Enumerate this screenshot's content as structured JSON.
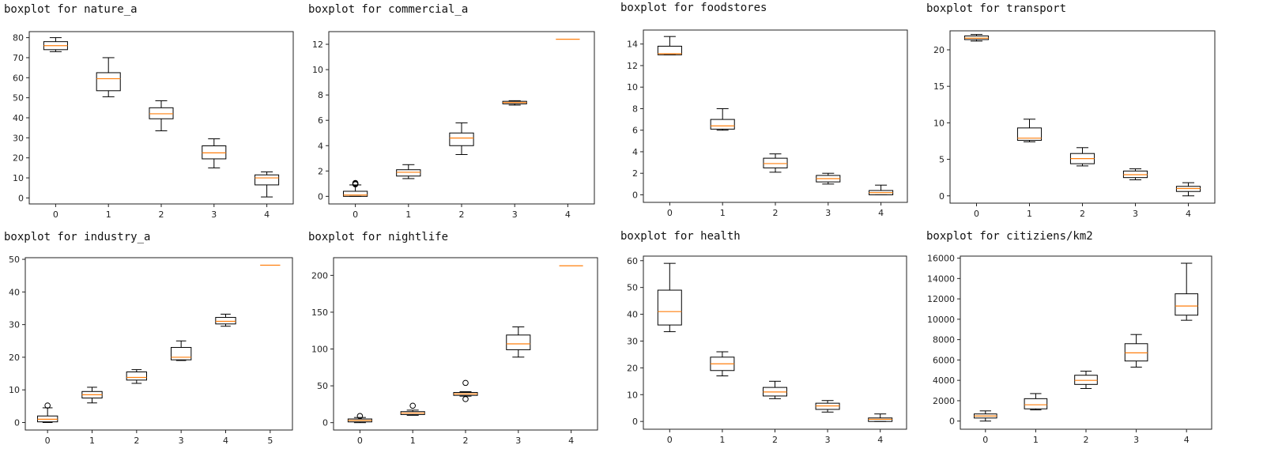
{
  "chart_data": [
    {
      "type": "boxplot",
      "title": "boxplot for nature_a",
      "x": [
        0,
        1,
        2,
        3,
        4
      ],
      "ylim": [
        -3,
        83
      ],
      "yticks": [
        0,
        10,
        20,
        30,
        40,
        50,
        60,
        70,
        80
      ],
      "boxes": [
        {
          "whislo": 73,
          "q1": 74,
          "med": 76,
          "q3": 78,
          "whishi": 80,
          "fliers": []
        },
        {
          "whislo": 50.5,
          "q1": 53.5,
          "med": 59.5,
          "q3": 62.5,
          "whishi": 70,
          "fliers": []
        },
        {
          "whislo": 33.5,
          "q1": 39.5,
          "med": 42,
          "q3": 45,
          "whishi": 48.5,
          "fliers": []
        },
        {
          "whislo": 15,
          "q1": 19.5,
          "med": 22.5,
          "q3": 26,
          "whishi": 29.5,
          "fliers": []
        },
        {
          "whislo": 0.5,
          "q1": 6.5,
          "med": 10,
          "q3": 11.5,
          "whishi": 13,
          "fliers": []
        }
      ]
    },
    {
      "type": "boxplot",
      "title": "boxplot for commercial_a",
      "x": [
        0,
        1,
        2,
        3,
        4
      ],
      "ylim": [
        -0.6,
        13.0
      ],
      "yticks": [
        0,
        2,
        4,
        6,
        8,
        10,
        12
      ],
      "boxes": [
        {
          "whislo": 0,
          "q1": 0,
          "med": 0.1,
          "q3": 0.4,
          "whishi": 0.9,
          "fliers": [
            0.95,
            1.0,
            1.05
          ]
        },
        {
          "whislo": 1.4,
          "q1": 1.6,
          "med": 1.9,
          "q3": 2.1,
          "whishi": 2.5,
          "fliers": []
        },
        {
          "whislo": 3.3,
          "q1": 4.0,
          "med": 4.6,
          "q3": 5.0,
          "whishi": 5.8,
          "fliers": []
        },
        {
          "whislo": 7.2,
          "q1": 7.3,
          "med": 7.4,
          "q3": 7.5,
          "whishi": 7.55,
          "fliers": []
        },
        {
          "whislo": 12.4,
          "q1": 12.4,
          "med": 12.4,
          "q3": 12.4,
          "whishi": 12.4,
          "fliers": []
        }
      ]
    },
    {
      "type": "boxplot",
      "title": "boxplot for foodstores",
      "x": [
        0,
        1,
        2,
        3,
        4
      ],
      "ylim": [
        -0.7,
        15.3
      ],
      "yticks": [
        0,
        2,
        4,
        6,
        8,
        10,
        12,
        14
      ],
      "boxes": [
        {
          "whislo": 13.0,
          "q1": 13.0,
          "med": 13.1,
          "q3": 13.8,
          "whishi": 14.7,
          "fliers": []
        },
        {
          "whislo": 6.0,
          "q1": 6.1,
          "med": 6.4,
          "q3": 7.0,
          "whishi": 8.0,
          "fliers": []
        },
        {
          "whislo": 2.1,
          "q1": 2.5,
          "med": 2.9,
          "q3": 3.4,
          "whishi": 3.8,
          "fliers": []
        },
        {
          "whislo": 1.0,
          "q1": 1.2,
          "med": 1.5,
          "q3": 1.8,
          "whishi": 2.0,
          "fliers": []
        },
        {
          "whislo": 0,
          "q1": 0,
          "med": 0.2,
          "q3": 0.4,
          "whishi": 0.9,
          "fliers": []
        }
      ]
    },
    {
      "type": "boxplot",
      "title": "boxplot for transport",
      "x": [
        0,
        1,
        2,
        3,
        4
      ],
      "ylim": [
        -1.0,
        22.6
      ],
      "yticks": [
        0,
        5,
        10,
        15,
        20
      ],
      "boxes": [
        {
          "whislo": 21.2,
          "q1": 21.4,
          "med": 21.6,
          "q3": 21.9,
          "whishi": 22.1,
          "fliers": []
        },
        {
          "whislo": 7.4,
          "q1": 7.6,
          "med": 7.9,
          "q3": 9.3,
          "whishi": 10.5,
          "fliers": []
        },
        {
          "whislo": 4.1,
          "q1": 4.4,
          "med": 5.1,
          "q3": 5.8,
          "whishi": 6.6,
          "fliers": []
        },
        {
          "whislo": 2.2,
          "q1": 2.5,
          "med": 2.9,
          "q3": 3.4,
          "whishi": 3.7,
          "fliers": []
        },
        {
          "whislo": 0,
          "q1": 0.6,
          "med": 1.0,
          "q3": 1.3,
          "whishi": 1.8,
          "fliers": []
        }
      ]
    },
    {
      "type": "boxplot",
      "title": "boxplot for industry_a",
      "x": [
        0,
        1,
        2,
        3,
        4,
        5
      ],
      "ylim": [
        -2.3,
        50.5
      ],
      "yticks": [
        0,
        10,
        20,
        30,
        40,
        50
      ],
      "boxes": [
        {
          "whislo": 0,
          "q1": 0.2,
          "med": 1.0,
          "q3": 2.0,
          "whishi": 4.5,
          "fliers": [
            5.2
          ]
        },
        {
          "whislo": 6,
          "q1": 7.5,
          "med": 8.5,
          "q3": 9.5,
          "whishi": 10.8,
          "fliers": []
        },
        {
          "whislo": 12,
          "q1": 13,
          "med": 13.8,
          "q3": 15.5,
          "whishi": 16.2,
          "fliers": []
        },
        {
          "whislo": 19,
          "q1": 19.2,
          "med": 20,
          "q3": 23,
          "whishi": 25,
          "fliers": []
        },
        {
          "whislo": 29.5,
          "q1": 30.2,
          "med": 31,
          "q3": 32.2,
          "whishi": 33.2,
          "fliers": []
        },
        {
          "whislo": 48.2,
          "q1": 48.2,
          "med": 48.2,
          "q3": 48.2,
          "whishi": 48.2,
          "fliers": []
        }
      ]
    },
    {
      "type": "boxplot",
      "title": "boxplot for nightlife",
      "x": [
        0,
        1,
        2,
        3,
        4
      ],
      "ylim": [
        -10,
        224
      ],
      "yticks": [
        0,
        50,
        100,
        150,
        200
      ],
      "boxes": [
        {
          "whislo": 0,
          "q1": 1,
          "med": 3,
          "q3": 5,
          "whishi": 7,
          "fliers": [
            9
          ]
        },
        {
          "whislo": 10,
          "q1": 11,
          "med": 13,
          "q3": 15,
          "whishi": 17,
          "fliers": [
            23
          ]
        },
        {
          "whislo": 36,
          "q1": 37,
          "med": 39,
          "q3": 41,
          "whishi": 42,
          "fliers": [
            32,
            54
          ]
        },
        {
          "whislo": 89,
          "q1": 99,
          "med": 107,
          "q3": 119,
          "whishi": 130,
          "fliers": []
        },
        {
          "whislo": 213,
          "q1": 213,
          "med": 213,
          "q3": 213,
          "whishi": 213,
          "fliers": []
        }
      ]
    },
    {
      "type": "boxplot",
      "title": "boxplot for health",
      "x": [
        0,
        1,
        2,
        3,
        4
      ],
      "ylim": [
        -2.9,
        61.7
      ],
      "yticks": [
        0,
        10,
        20,
        30,
        40,
        50,
        60
      ],
      "boxes": [
        {
          "whislo": 33.5,
          "q1": 36,
          "med": 41,
          "q3": 49,
          "whishi": 59,
          "fliers": []
        },
        {
          "whislo": 17,
          "q1": 19,
          "med": 21.5,
          "q3": 24,
          "whishi": 26,
          "fliers": []
        },
        {
          "whislo": 8.5,
          "q1": 9.5,
          "med": 11,
          "q3": 12.7,
          "whishi": 15,
          "fliers": []
        },
        {
          "whislo": 3.5,
          "q1": 4.5,
          "med": 5.8,
          "q3": 6.8,
          "whishi": 7.8,
          "fliers": []
        },
        {
          "whislo": 0,
          "q1": 0,
          "med": 0.8,
          "q3": 1.3,
          "whishi": 2.8,
          "fliers": []
        }
      ]
    },
    {
      "type": "boxplot",
      "title": "boxplot for citiziens/km2",
      "x": [
        0,
        1,
        2,
        3,
        4
      ],
      "ylim": [
        -800,
        16200
      ],
      "yticks": [
        0,
        2000,
        4000,
        6000,
        8000,
        10000,
        12000,
        14000,
        16000
      ],
      "boxes": [
        {
          "whislo": 0,
          "q1": 300,
          "med": 500,
          "q3": 700,
          "whishi": 1000,
          "fliers": []
        },
        {
          "whislo": 1100,
          "q1": 1200,
          "med": 1600,
          "q3": 2200,
          "whishi": 2700,
          "fliers": []
        },
        {
          "whislo": 3200,
          "q1": 3600,
          "med": 4000,
          "q3": 4500,
          "whishi": 4900,
          "fliers": []
        },
        {
          "whislo": 5300,
          "q1": 5900,
          "med": 6700,
          "q3": 7600,
          "whishi": 8500,
          "fliers": []
        },
        {
          "whislo": 9900,
          "q1": 10400,
          "med": 11300,
          "q3": 12500,
          "whishi": 15500,
          "fliers": []
        }
      ]
    }
  ],
  "colors": {
    "box": "#000000",
    "median": "#ff7f0e",
    "flier": "#000000"
  }
}
